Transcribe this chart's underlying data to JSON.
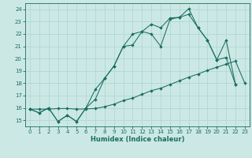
{
  "xlabel": "Humidex (Indice chaleur)",
  "bg_color": "#cce8e5",
  "line_color": "#1a6e60",
  "grid_color": "#b0d8d4",
  "xlim": [
    -0.5,
    23.5
  ],
  "ylim": [
    14.5,
    24.5
  ],
  "xticks": [
    0,
    1,
    2,
    3,
    4,
    5,
    6,
    7,
    8,
    9,
    10,
    11,
    12,
    13,
    14,
    15,
    16,
    17,
    18,
    19,
    20,
    21,
    22,
    23
  ],
  "yticks": [
    15,
    16,
    17,
    18,
    19,
    20,
    21,
    22,
    23,
    24
  ],
  "line1_x": [
    0,
    1,
    2,
    3,
    4,
    5,
    6,
    7,
    8,
    9,
    10,
    11,
    12,
    13,
    14,
    15,
    16,
    17,
    18,
    19,
    20,
    21,
    22,
    23
  ],
  "line1_y": [
    15.9,
    15.9,
    15.9,
    15.95,
    15.95,
    15.9,
    15.92,
    15.95,
    16.1,
    16.3,
    16.6,
    16.8,
    17.1,
    17.4,
    17.6,
    17.9,
    18.2,
    18.5,
    18.75,
    19.05,
    19.3,
    19.55,
    19.8,
    18.0
  ],
  "line2_x": [
    0,
    1,
    2,
    3,
    4,
    5,
    6,
    7,
    8,
    9,
    10,
    11,
    12,
    13,
    14,
    15,
    16,
    17,
    18,
    19,
    20,
    21,
    22
  ],
  "line2_y": [
    15.9,
    15.6,
    16.0,
    14.9,
    15.4,
    14.9,
    16.0,
    17.5,
    18.4,
    19.4,
    21.0,
    21.1,
    22.2,
    22.0,
    21.0,
    23.2,
    23.35,
    23.6,
    22.5,
    21.5,
    19.9,
    21.5,
    17.9
  ],
  "line3_x": [
    0,
    1,
    2,
    3,
    4,
    5,
    6,
    7,
    8,
    9,
    10,
    11,
    12,
    13,
    14,
    15,
    16,
    17,
    18,
    19,
    20,
    21,
    22
  ],
  "line3_y": [
    15.9,
    15.6,
    16.0,
    14.9,
    15.4,
    14.9,
    16.0,
    16.7,
    18.4,
    19.4,
    21.0,
    22.0,
    22.2,
    22.8,
    22.5,
    23.3,
    23.35,
    24.05,
    22.5,
    21.5,
    19.9,
    20.1,
    17.9
  ]
}
